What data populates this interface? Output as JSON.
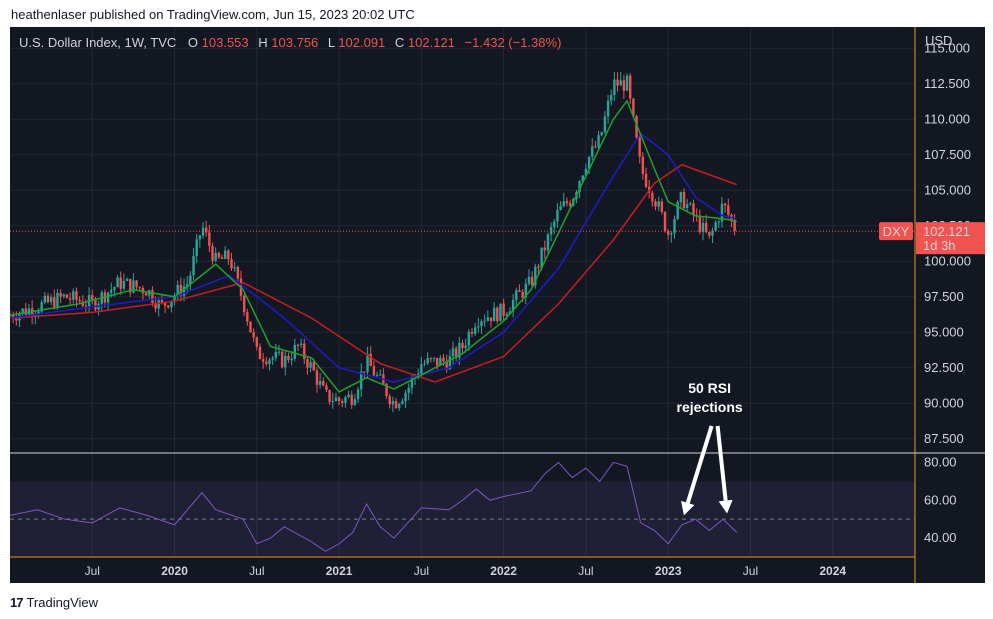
{
  "header": {
    "publisher_line": "heathenlaser published on TradingView.com, Jun 15, 2023 20:02 UTC"
  },
  "footer": {
    "brand": "TradingView",
    "logo_glyph": "17"
  },
  "legend": {
    "symbol": "U.S. Dollar Index, 1W, TVC",
    "o_label": "O",
    "o_value": "103.553",
    "h_label": "H",
    "h_value": "103.756",
    "l_label": "L",
    "l_value": "102.091",
    "c_label": "C",
    "c_value": "102.121",
    "change": "−1.432 (−1.38%)"
  },
  "price_tag": {
    "symbol": "DXY",
    "price": "102.121",
    "countdown": "1d 3h"
  },
  "colors": {
    "background": "#131722",
    "grid": "#232733",
    "up": "#26a69a",
    "down": "#ef5350",
    "ema_fast": "#1fa22e",
    "ema_mid": "#1c1cc7",
    "ema_slow": "#c31e23",
    "rsi": "#7e57c2",
    "axis_text": "#d1d4dc",
    "price_tag": "#f05350"
  },
  "chart_data": [
    {
      "type": "candlestick",
      "title": "U.S. Dollar Index, 1W, TVC",
      "y_axis_label": "USD",
      "y_ticks": [
        "87.500",
        "90.000",
        "92.500",
        "95.000",
        "97.500",
        "100.000",
        "102.500",
        "105.000",
        "107.500",
        "110.000",
        "112.500",
        "115.000"
      ],
      "ylim": [
        86.5,
        116.5
      ],
      "x_tick_labels": [
        "Jul",
        "2020",
        "Jul",
        "2021",
        "Jul",
        "2022",
        "Jul",
        "2023",
        "Jul",
        "2024"
      ],
      "x_ticks": [
        "2019-07",
        "2020-01",
        "2020-07",
        "2021-01",
        "2021-07",
        "2022-01",
        "2022-07",
        "2023-01",
        "2023-07",
        "2024-01"
      ],
      "xlim": [
        "2019-01",
        "2024-07"
      ],
      "last_price": 102.121,
      "series": [
        {
          "name": "",
          "kind": "price_path",
          "points": [
            [
              "2019-01",
              96.2
            ],
            [
              "2019-03",
              96.8
            ],
            [
              "2019-05",
              97.5
            ],
            [
              "2019-07",
              97.0
            ],
            [
              "2019-09",
              98.5
            ],
            [
              "2019-11",
              98.0
            ],
            [
              "2019-12",
              96.8
            ],
            [
              "2020-02",
              98.5
            ],
            [
              "2020-03",
              102.5
            ],
            [
              "2020-04",
              100.0
            ],
            [
              "2020-05",
              100.3
            ],
            [
              "2020-06",
              97.2
            ],
            [
              "2020-07",
              93.5
            ],
            [
              "2020-09",
              93.0
            ],
            [
              "2020-10",
              94.0
            ],
            [
              "2020-11",
              92.5
            ],
            [
              "2020-12",
              90.5
            ],
            [
              "2021-01",
              90.2
            ],
            [
              "2021-02",
              90.5
            ],
            [
              "2021-03",
              93.0
            ],
            [
              "2021-05",
              90.0
            ],
            [
              "2021-06",
              91.0
            ],
            [
              "2021-07",
              92.8
            ],
            [
              "2021-09",
              93.0
            ],
            [
              "2021-10",
              94.0
            ],
            [
              "2021-11",
              96.0
            ],
            [
              "2021-12",
              96.2
            ],
            [
              "2022-01",
              96.5
            ],
            [
              "2022-03",
              98.5
            ],
            [
              "2022-04",
              101.0
            ],
            [
              "2022-05",
              103.5
            ],
            [
              "2022-06",
              104.5
            ],
            [
              "2022-07",
              107.0
            ],
            [
              "2022-08",
              108.5
            ],
            [
              "2022-09",
              112.5
            ],
            [
              "2022-10",
              112.5
            ],
            [
              "2022-11",
              106.5
            ],
            [
              "2022-12",
              104.5
            ],
            [
              "2023-01",
              102.0
            ],
            [
              "2023-02",
              104.5
            ],
            [
              "2023-03",
              103.0
            ],
            [
              "2023-04",
              101.5
            ],
            [
              "2023-05",
              104.0
            ],
            [
              "2023-06",
              102.1
            ]
          ]
        },
        {
          "name": "",
          "kind": "ema_fast",
          "points": [
            [
              "2019-01",
              96.2
            ],
            [
              "2019-06",
              97.0
            ],
            [
              "2019-10",
              98.0
            ],
            [
              "2020-01",
              97.5
            ],
            [
              "2020-04",
              99.8
            ],
            [
              "2020-06",
              98.0
            ],
            [
              "2020-08",
              94.0
            ],
            [
              "2020-11",
              93.2
            ],
            [
              "2021-01",
              90.8
            ],
            [
              "2021-03",
              91.8
            ],
            [
              "2021-05",
              91.0
            ],
            [
              "2021-07",
              92.0
            ],
            [
              "2021-10",
              93.5
            ],
            [
              "2022-01",
              95.8
            ],
            [
              "2022-03",
              98.0
            ],
            [
              "2022-05",
              102.0
            ],
            [
              "2022-07",
              106.0
            ],
            [
              "2022-09",
              110.0
            ],
            [
              "2022-10",
              111.3
            ],
            [
              "2022-12",
              106.5
            ],
            [
              "2023-01",
              104.2
            ],
            [
              "2023-03",
              103.2
            ],
            [
              "2023-05",
              103.0
            ],
            [
              "2023-06",
              102.8
            ]
          ]
        },
        {
          "name": "",
          "kind": "ema_mid",
          "points": [
            [
              "2019-01",
              96.0
            ],
            [
              "2019-07",
              96.8
            ],
            [
              "2020-01",
              97.5
            ],
            [
              "2020-05",
              99.0
            ],
            [
              "2020-09",
              96.0
            ],
            [
              "2021-01",
              92.5
            ],
            [
              "2021-05",
              91.5
            ],
            [
              "2021-09",
              92.5
            ],
            [
              "2022-01",
              95.0
            ],
            [
              "2022-05",
              99.5
            ],
            [
              "2022-09",
              106.0
            ],
            [
              "2022-11",
              109.0
            ],
            [
              "2023-01",
              107.5
            ],
            [
              "2023-03",
              104.5
            ],
            [
              "2023-05",
              103.2
            ],
            [
              "2023-06",
              103.0
            ]
          ]
        },
        {
          "name": "",
          "kind": "ema_slow",
          "points": [
            [
              "2019-01",
              96.0
            ],
            [
              "2019-07",
              96.4
            ],
            [
              "2020-01",
              97.2
            ],
            [
              "2020-06",
              98.5
            ],
            [
              "2020-11",
              96.0
            ],
            [
              "2021-04",
              92.8
            ],
            [
              "2021-08",
              91.5
            ],
            [
              "2022-01",
              93.3
            ],
            [
              "2022-05",
              97.0
            ],
            [
              "2022-09",
              101.5
            ],
            [
              "2022-12",
              105.5
            ],
            [
              "2023-02",
              106.8
            ],
            [
              "2023-06",
              105.4
            ]
          ]
        }
      ]
    },
    {
      "type": "line",
      "title": "",
      "y_ticks": [
        "40.00",
        "60.00",
        "80.00"
      ],
      "ylim": [
        30,
        85
      ],
      "band": [
        30,
        70
      ],
      "midline": 50,
      "annotation": [
        "50 RSI",
        "rejections"
      ],
      "series": [
        {
          "name": "",
          "points": [
            [
              "2019-01",
              52
            ],
            [
              "2019-03",
              55
            ],
            [
              "2019-05",
              50
            ],
            [
              "2019-07",
              48
            ],
            [
              "2019-09",
              56
            ],
            [
              "2019-11",
              52
            ],
            [
              "2020-01",
              47
            ],
            [
              "2020-03",
              64
            ],
            [
              "2020-04",
              55
            ],
            [
              "2020-06",
              50
            ],
            [
              "2020-07",
              37
            ],
            [
              "2020-08",
              40
            ],
            [
              "2020-09",
              46
            ],
            [
              "2020-10",
              42
            ],
            [
              "2020-11",
              38
            ],
            [
              "2020-12",
              33
            ],
            [
              "2021-01",
              37
            ],
            [
              "2021-02",
              43
            ],
            [
              "2021-03",
              58
            ],
            [
              "2021-04",
              46
            ],
            [
              "2021-05",
              40
            ],
            [
              "2021-06",
              48
            ],
            [
              "2021-07",
              56
            ],
            [
              "2021-09",
              55
            ],
            [
              "2021-10",
              60
            ],
            [
              "2021-11",
              66
            ],
            [
              "2021-12",
              60
            ],
            [
              "2022-01",
              62
            ],
            [
              "2022-03",
              65
            ],
            [
              "2022-04",
              74
            ],
            [
              "2022-05",
              80
            ],
            [
              "2022-06",
              72
            ],
            [
              "2022-07",
              77
            ],
            [
              "2022-08",
              70
            ],
            [
              "2022-09",
              80
            ],
            [
              "2022-10",
              78
            ],
            [
              "2022-11",
              48
            ],
            [
              "2022-12",
              44
            ],
            [
              "2023-01",
              37
            ],
            [
              "2023-02",
              47
            ],
            [
              "2023-03",
              50
            ],
            [
              "2023-04",
              44
            ],
            [
              "2023-05",
              50
            ],
            [
              "2023-06",
              43
            ]
          ]
        }
      ]
    }
  ]
}
